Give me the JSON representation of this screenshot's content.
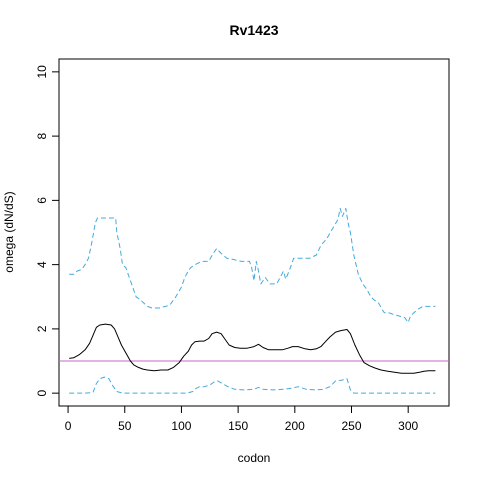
{
  "chart_data": {
    "type": "line",
    "title": "Rv1423",
    "xlabel": "codon",
    "ylabel": "omega (dN/dS)",
    "xlim": [
      -8,
      336
    ],
    "ylim": [
      -0.4,
      10.4
    ],
    "x_ticks": [
      0,
      50,
      100,
      150,
      200,
      250,
      300
    ],
    "y_ticks": [
      0,
      2,
      4,
      6,
      8,
      10
    ],
    "reference_line": {
      "y": 1,
      "color": "#cc66cc"
    },
    "series": [
      {
        "style": "dashed",
        "color": "#44aadd",
        "points": [
          [
            1,
            3.7
          ],
          [
            5,
            3.7
          ],
          [
            8,
            3.8
          ],
          [
            12,
            3.85
          ],
          [
            15,
            4.0
          ],
          [
            18,
            4.2
          ],
          [
            21,
            4.7
          ],
          [
            24,
            5.3
          ],
          [
            26,
            5.45
          ],
          [
            30,
            5.45
          ],
          [
            38,
            5.45
          ],
          [
            42,
            5.45
          ],
          [
            43,
            5.0
          ],
          [
            46,
            4.5
          ],
          [
            48,
            4.0
          ],
          [
            51,
            3.9
          ],
          [
            54,
            3.6
          ],
          [
            57,
            3.3
          ],
          [
            60,
            3.0
          ],
          [
            64,
            2.9
          ],
          [
            67,
            2.8
          ],
          [
            70,
            2.7
          ],
          [
            74,
            2.65
          ],
          [
            80,
            2.65
          ],
          [
            86,
            2.7
          ],
          [
            90,
            2.75
          ],
          [
            95,
            3.0
          ],
          [
            100,
            3.3
          ],
          [
            103,
            3.6
          ],
          [
            106,
            3.8
          ],
          [
            108,
            3.9
          ],
          [
            112,
            4.0
          ],
          [
            118,
            4.1
          ],
          [
            124,
            4.1
          ],
          [
            128,
            4.35
          ],
          [
            131,
            4.5
          ],
          [
            135,
            4.35
          ],
          [
            140,
            4.2
          ],
          [
            147,
            4.15
          ],
          [
            153,
            4.1
          ],
          [
            160,
            4.1
          ],
          [
            162,
            3.9
          ],
          [
            164,
            3.5
          ],
          [
            166,
            4.1
          ],
          [
            168,
            3.8
          ],
          [
            170,
            3.4
          ],
          [
            174,
            3.6
          ],
          [
            178,
            3.4
          ],
          [
            184,
            3.4
          ],
          [
            187,
            3.6
          ],
          [
            190,
            3.8
          ],
          [
            192,
            3.55
          ],
          [
            195,
            3.8
          ],
          [
            199,
            4.2
          ],
          [
            205,
            4.2
          ],
          [
            213,
            4.2
          ],
          [
            219,
            4.3
          ],
          [
            223,
            4.6
          ],
          [
            228,
            4.8
          ],
          [
            233,
            5.1
          ],
          [
            238,
            5.4
          ],
          [
            240,
            5.75
          ],
          [
            242,
            5.5
          ],
          [
            245,
            5.75
          ],
          [
            247,
            5.3
          ],
          [
            249,
            5.0
          ],
          [
            252,
            4.3
          ],
          [
            256,
            3.7
          ],
          [
            260,
            3.4
          ],
          [
            264,
            3.2
          ],
          [
            267,
            3.0
          ],
          [
            270,
            2.9
          ],
          [
            274,
            2.8
          ],
          [
            277,
            2.6
          ],
          [
            279,
            2.5
          ],
          [
            283,
            2.5
          ],
          [
            287,
            2.45
          ],
          [
            292,
            2.4
          ],
          [
            297,
            2.35
          ],
          [
            300,
            2.2
          ],
          [
            302,
            2.4
          ],
          [
            305,
            2.5
          ],
          [
            308,
            2.6
          ],
          [
            313,
            2.7
          ],
          [
            318,
            2.7
          ],
          [
            324,
            2.7
          ]
        ]
      },
      {
        "style": "solid",
        "color": "#000000",
        "points": [
          [
            1,
            1.08
          ],
          [
            5,
            1.1
          ],
          [
            10,
            1.2
          ],
          [
            15,
            1.35
          ],
          [
            19,
            1.55
          ],
          [
            22,
            1.8
          ],
          [
            25,
            2.05
          ],
          [
            28,
            2.12
          ],
          [
            33,
            2.15
          ],
          [
            38,
            2.12
          ],
          [
            41,
            2.0
          ],
          [
            44,
            1.75
          ],
          [
            47,
            1.5
          ],
          [
            51,
            1.25
          ],
          [
            55,
            1.0
          ],
          [
            58,
            0.88
          ],
          [
            62,
            0.8
          ],
          [
            66,
            0.75
          ],
          [
            70,
            0.72
          ],
          [
            76,
            0.7
          ],
          [
            82,
            0.72
          ],
          [
            88,
            0.72
          ],
          [
            93,
            0.8
          ],
          [
            98,
            0.95
          ],
          [
            102,
            1.15
          ],
          [
            106,
            1.3
          ],
          [
            109,
            1.5
          ],
          [
            112,
            1.6
          ],
          [
            116,
            1.62
          ],
          [
            120,
            1.62
          ],
          [
            124,
            1.7
          ],
          [
            127,
            1.85
          ],
          [
            131,
            1.9
          ],
          [
            135,
            1.85
          ],
          [
            138,
            1.7
          ],
          [
            142,
            1.5
          ],
          [
            147,
            1.42
          ],
          [
            152,
            1.4
          ],
          [
            158,
            1.4
          ],
          [
            164,
            1.45
          ],
          [
            168,
            1.52
          ],
          [
            172,
            1.42
          ],
          [
            177,
            1.35
          ],
          [
            183,
            1.35
          ],
          [
            189,
            1.35
          ],
          [
            194,
            1.4
          ],
          [
            198,
            1.45
          ],
          [
            203,
            1.45
          ],
          [
            209,
            1.38
          ],
          [
            214,
            1.35
          ],
          [
            219,
            1.38
          ],
          [
            223,
            1.45
          ],
          [
            227,
            1.6
          ],
          [
            231,
            1.75
          ],
          [
            236,
            1.9
          ],
          [
            241,
            1.95
          ],
          [
            246,
            1.98
          ],
          [
            249,
            1.85
          ],
          [
            253,
            1.5
          ],
          [
            257,
            1.2
          ],
          [
            261,
            0.95
          ],
          [
            266,
            0.85
          ],
          [
            271,
            0.78
          ],
          [
            276,
            0.72
          ],
          [
            282,
            0.68
          ],
          [
            288,
            0.65
          ],
          [
            294,
            0.62
          ],
          [
            300,
            0.62
          ],
          [
            305,
            0.62
          ],
          [
            310,
            0.65
          ],
          [
            314,
            0.68
          ],
          [
            318,
            0.7
          ],
          [
            324,
            0.7
          ]
        ]
      },
      {
        "style": "dashed",
        "color": "#44aadd",
        "points": [
          [
            1,
            0.0
          ],
          [
            15,
            0.0
          ],
          [
            22,
            0.02
          ],
          [
            25,
            0.3
          ],
          [
            28,
            0.45
          ],
          [
            32,
            0.5
          ],
          [
            36,
            0.45
          ],
          [
            40,
            0.2
          ],
          [
            43,
            0.05
          ],
          [
            48,
            0.0
          ],
          [
            60,
            0.0
          ],
          [
            80,
            0.0
          ],
          [
            95,
            0.0
          ],
          [
            105,
            0.0
          ],
          [
            110,
            0.05
          ],
          [
            113,
            0.15
          ],
          [
            116,
            0.2
          ],
          [
            120,
            0.2
          ],
          [
            125,
            0.25
          ],
          [
            129,
            0.35
          ],
          [
            132,
            0.38
          ],
          [
            136,
            0.3
          ],
          [
            141,
            0.2
          ],
          [
            147,
            0.12
          ],
          [
            155,
            0.1
          ],
          [
            164,
            0.12
          ],
          [
            168,
            0.18
          ],
          [
            172,
            0.12
          ],
          [
            180,
            0.1
          ],
          [
            190,
            0.12
          ],
          [
            197,
            0.15
          ],
          [
            203,
            0.2
          ],
          [
            210,
            0.12
          ],
          [
            218,
            0.1
          ],
          [
            225,
            0.12
          ],
          [
            231,
            0.2
          ],
          [
            236,
            0.38
          ],
          [
            241,
            0.4
          ],
          [
            246,
            0.45
          ],
          [
            249,
            0.1
          ],
          [
            252,
            0.0
          ],
          [
            270,
            0.0
          ],
          [
            300,
            0.0
          ],
          [
            324,
            0.0
          ]
        ]
      }
    ]
  }
}
